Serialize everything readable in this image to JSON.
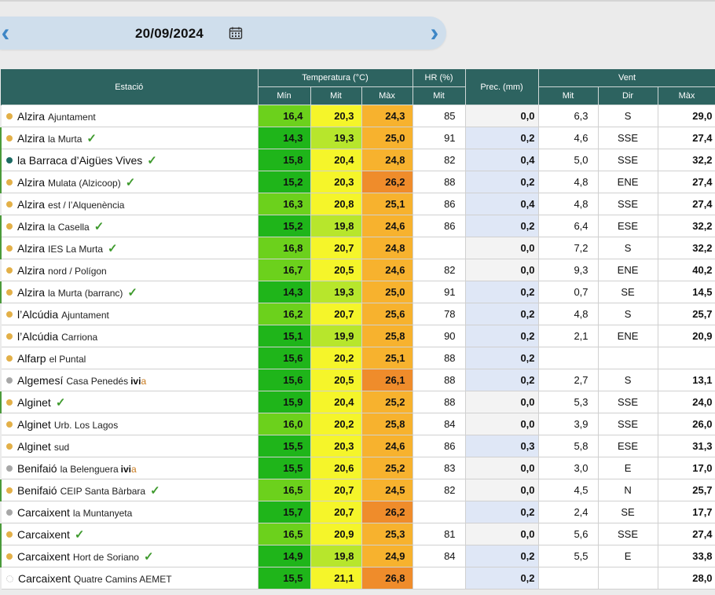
{
  "header": {
    "date": "20/09/2024",
    "prev_icon": "‹",
    "next_icon": "›"
  },
  "columns": {
    "estacio": "Estació",
    "temperatura": "Temperatura (°C)",
    "hr": "HR (%)",
    "prec": "Prec. (mm)",
    "vent": "Vent",
    "min": "Mín",
    "mit": "Mit",
    "max": "Màx",
    "hr_mit": "Mit",
    "vent_mit": "Mit",
    "vent_dir": "Dir",
    "vent_max": "Màx"
  },
  "colors": {
    "header_bg": "#2d6360",
    "dot_gold": "#e3b048",
    "dot_teal": "#1d6b63",
    "dot_gray": "#a7a7a7",
    "check_green": "#3e9a2d",
    "prec_nonzero_bg": "#dfe7f6"
  },
  "rows": [
    {
      "name": "Alzira",
      "sub": "Ajuntament",
      "dot": "gold",
      "check": false,
      "ivia": false,
      "min": "16,4",
      "mit": "20,3",
      "max": "24,3",
      "min_c": "#6cd11c",
      "mit_c": "#f5f52a",
      "max_c": "#f7b22e",
      "hr": "85",
      "prec": "0,0",
      "vmit": "6,3",
      "vdir": "S",
      "vmax": "29,0"
    },
    {
      "name": "Alzira",
      "sub": "la Murta",
      "dot": "gold",
      "check": true,
      "ivia": false,
      "min": "14,3",
      "mit": "19,3",
      "max": "25,0",
      "min_c": "#1fb51a",
      "mit_c": "#b7e62c",
      "max_c": "#f7b22e",
      "hr": "91",
      "prec": "0,2",
      "vmit": "4,6",
      "vdir": "SSE",
      "vmax": "27,4"
    },
    {
      "name": "la Barraca d’Aigües Vives",
      "sub": "",
      "dot": "teal",
      "check": true,
      "ivia": false,
      "min": "15,8",
      "mit": "20,4",
      "max": "24,8",
      "min_c": "#1fb51a",
      "mit_c": "#f5f52a",
      "max_c": "#f7b22e",
      "hr": "82",
      "prec": "0,4",
      "vmit": "5,0",
      "vdir": "SSE",
      "vmax": "32,2"
    },
    {
      "name": "Alzira",
      "sub": "Mulata (Alzicoop)",
      "dot": "gold",
      "check": true,
      "ivia": false,
      "min": "15,2",
      "mit": "20,3",
      "max": "26,2",
      "min_c": "#1fb51a",
      "mit_c": "#f5f52a",
      "max_c": "#ef8c2b",
      "hr": "88",
      "prec": "0,2",
      "vmit": "4,8",
      "vdir": "ENE",
      "vmax": "27,4"
    },
    {
      "name": "Alzira",
      "sub": "est / l’Alquenència",
      "dot": "gold",
      "check": false,
      "ivia": false,
      "min": "16,3",
      "mit": "20,8",
      "max": "25,1",
      "min_c": "#6cd11c",
      "mit_c": "#f5f52a",
      "max_c": "#f7b22e",
      "hr": "86",
      "prec": "0,4",
      "vmit": "4,8",
      "vdir": "SSE",
      "vmax": "27,4"
    },
    {
      "name": "Alzira",
      "sub": "la Casella",
      "dot": "gold",
      "check": true,
      "ivia": false,
      "min": "15,2",
      "mit": "19,8",
      "max": "24,6",
      "min_c": "#1fb51a",
      "mit_c": "#b7e62c",
      "max_c": "#f7b22e",
      "hr": "86",
      "prec": "0,2",
      "vmit": "6,4",
      "vdir": "ESE",
      "vmax": "32,2"
    },
    {
      "name": "Alzira",
      "sub": "IES La Murta",
      "dot": "gold",
      "check": true,
      "ivia": false,
      "min": "16,8",
      "mit": "20,7",
      "max": "24,8",
      "min_c": "#6cd11c",
      "mit_c": "#f5f52a",
      "max_c": "#f7b22e",
      "hr": "",
      "prec": "0,0",
      "vmit": "7,2",
      "vdir": "S",
      "vmax": "32,2"
    },
    {
      "name": "Alzira",
      "sub": "nord / Polígon",
      "dot": "gold",
      "check": false,
      "ivia": false,
      "min": "16,7",
      "mit": "20,5",
      "max": "24,6",
      "min_c": "#6cd11c",
      "mit_c": "#f5f52a",
      "max_c": "#f7b22e",
      "hr": "82",
      "prec": "0,0",
      "vmit": "9,3",
      "vdir": "ENE",
      "vmax": "40,2"
    },
    {
      "name": "Alzira",
      "sub": "la Murta (barranc)",
      "dot": "gold",
      "check": true,
      "ivia": false,
      "min": "14,3",
      "mit": "19,3",
      "max": "25,0",
      "min_c": "#1fb51a",
      "mit_c": "#b7e62c",
      "max_c": "#f7b22e",
      "hr": "91",
      "prec": "0,2",
      "vmit": "0,7",
      "vdir": "SE",
      "vmax": "14,5"
    },
    {
      "name": "l’Alcúdia",
      "sub": "Ajuntament",
      "dot": "gold",
      "check": false,
      "ivia": false,
      "min": "16,2",
      "mit": "20,7",
      "max": "25,6",
      "min_c": "#6cd11c",
      "mit_c": "#f5f52a",
      "max_c": "#f7b22e",
      "hr": "78",
      "prec": "0,2",
      "vmit": "4,8",
      "vdir": "S",
      "vmax": "25,7"
    },
    {
      "name": "l’Alcúdia",
      "sub": "Carriona",
      "dot": "gold",
      "check": false,
      "ivia": false,
      "min": "15,1",
      "mit": "19,9",
      "max": "25,8",
      "min_c": "#1fb51a",
      "mit_c": "#b7e62c",
      "max_c": "#f7b22e",
      "hr": "90",
      "prec": "0,2",
      "vmit": "2,1",
      "vdir": "ENE",
      "vmax": "20,9"
    },
    {
      "name": "Alfarp",
      "sub": "el Puntal",
      "dot": "gold",
      "check": false,
      "ivia": false,
      "min": "15,6",
      "mit": "20,2",
      "max": "25,1",
      "min_c": "#1fb51a",
      "mit_c": "#f5f52a",
      "max_c": "#f7b22e",
      "hr": "88",
      "prec": "0,2",
      "vmit": "",
      "vdir": "",
      "vmax": ""
    },
    {
      "name": "Algemesí",
      "sub": "Casa Penedés",
      "dot": "gray",
      "check": false,
      "ivia": true,
      "min": "15,6",
      "mit": "20,5",
      "max": "26,1",
      "min_c": "#1fb51a",
      "mit_c": "#f5f52a",
      "max_c": "#ef8c2b",
      "hr": "88",
      "prec": "0,2",
      "vmit": "2,7",
      "vdir": "S",
      "vmax": "13,1"
    },
    {
      "name": "Alginet",
      "sub": "",
      "dot": "gold",
      "check": true,
      "ivia": false,
      "min": "15,9",
      "mit": "20,4",
      "max": "25,2",
      "min_c": "#1fb51a",
      "mit_c": "#f5f52a",
      "max_c": "#f7b22e",
      "hr": "88",
      "prec": "0,0",
      "vmit": "5,3",
      "vdir": "SSE",
      "vmax": "24,0"
    },
    {
      "name": "Alginet",
      "sub": "Urb. Los Lagos",
      "dot": "gold",
      "check": false,
      "ivia": false,
      "min": "16,0",
      "mit": "20,2",
      "max": "25,8",
      "min_c": "#6cd11c",
      "mit_c": "#f5f52a",
      "max_c": "#f7b22e",
      "hr": "84",
      "prec": "0,0",
      "vmit": "3,9",
      "vdir": "SSE",
      "vmax": "26,0"
    },
    {
      "name": "Alginet",
      "sub": "sud",
      "dot": "gold",
      "check": false,
      "ivia": false,
      "min": "15,5",
      "mit": "20,3",
      "max": "24,6",
      "min_c": "#1fb51a",
      "mit_c": "#f5f52a",
      "max_c": "#f7b22e",
      "hr": "86",
      "prec": "0,3",
      "vmit": "5,8",
      "vdir": "ESE",
      "vmax": "31,3"
    },
    {
      "name": "Benifaió",
      "sub": "la Belenguera",
      "dot": "gray",
      "check": false,
      "ivia": true,
      "min": "15,5",
      "mit": "20,6",
      "max": "25,2",
      "min_c": "#1fb51a",
      "mit_c": "#f5f52a",
      "max_c": "#f7b22e",
      "hr": "83",
      "prec": "0,0",
      "vmit": "3,0",
      "vdir": "E",
      "vmax": "17,0"
    },
    {
      "name": "Benifaió",
      "sub": "CEIP Santa Bàrbara",
      "dot": "gold",
      "check": true,
      "ivia": false,
      "min": "16,5",
      "mit": "20,7",
      "max": "24,5",
      "min_c": "#6cd11c",
      "mit_c": "#f5f52a",
      "max_c": "#f7b22e",
      "hr": "82",
      "prec": "0,0",
      "vmit": "4,5",
      "vdir": "N",
      "vmax": "25,7"
    },
    {
      "name": "Carcaixent",
      "sub": "la Muntanyeta",
      "dot": "gray",
      "check": false,
      "ivia": false,
      "min": "15,7",
      "mit": "20,7",
      "max": "26,2",
      "min_c": "#1fb51a",
      "mit_c": "#f5f52a",
      "max_c": "#ef8c2b",
      "hr": "",
      "prec": "0,2",
      "vmit": "2,4",
      "vdir": "SE",
      "vmax": "17,7"
    },
    {
      "name": "Carcaixent",
      "sub": "",
      "dot": "gold",
      "check": true,
      "ivia": false,
      "min": "16,5",
      "mit": "20,9",
      "max": "25,3",
      "min_c": "#6cd11c",
      "mit_c": "#f5f52a",
      "max_c": "#f7b22e",
      "hr": "81",
      "prec": "0,0",
      "vmit": "5,6",
      "vdir": "SSE",
      "vmax": "27,4"
    },
    {
      "name": "Carcaixent",
      "sub": "Hort de Soriano",
      "dot": "gold",
      "check": true,
      "ivia": false,
      "min": "14,9",
      "mit": "19,8",
      "max": "24,9",
      "min_c": "#1fb51a",
      "mit_c": "#b7e62c",
      "max_c": "#f7b22e",
      "hr": "84",
      "prec": "0,2",
      "vmit": "5,5",
      "vdir": "E",
      "vmax": "33,8"
    },
    {
      "name": "Carcaixent",
      "sub": "Quatre Camins AEMET",
      "dot": "hollow",
      "check": false,
      "ivia": false,
      "min": "15,5",
      "mit": "21,1",
      "max": "26,8",
      "min_c": "#1fb51a",
      "mit_c": "#f5f52a",
      "max_c": "#ef8c2b",
      "hr": "",
      "prec": "0,2",
      "vmit": "",
      "vdir": "",
      "vmax": "28,0"
    }
  ]
}
